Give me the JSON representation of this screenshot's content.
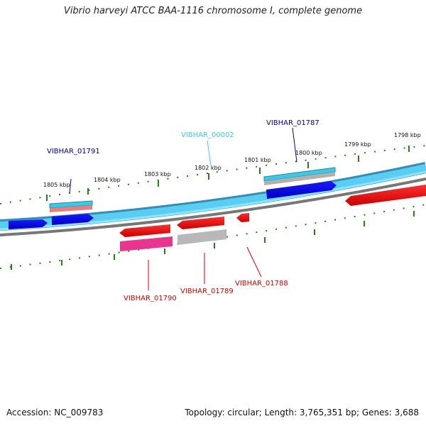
{
  "title": "Vibrio harveyi ATCC BAA-1116 chromosome I, complete genome",
  "footer": {
    "accession": "Accession: NC_009783",
    "stats": "Topology: circular; Length: 3,765,351 bp; Genes: 3,688"
  },
  "kbp_labels": [
    "1805 kbp",
    "1804 kbp",
    "1803 kbp",
    "1802 kbp",
    "1801 kbp",
    "1800 kbp",
    "1799 kbp",
    "1798 kbp"
  ],
  "gene_labels": [
    {
      "id": "VIBHAR_01791",
      "color": "#00008b"
    },
    {
      "id": "VIBHAR_00002",
      "color": "#3ec8e6"
    },
    {
      "id": "VIBHAR_01787",
      "color": "#00008b"
    },
    {
      "id": "VIBHAR_01790",
      "color": "#cc0000"
    },
    {
      "id": "VIBHAR_01789",
      "color": "#cc0000"
    },
    {
      "id": "VIBHAR_01788",
      "color": "#cc0000"
    }
  ],
  "colors": {
    "backbone": "#5bcdf3",
    "backbone_edge": "#2e8fb8",
    "inner_ring": "#777777",
    "tick": "#2a7a1a",
    "forward_gene": "#0000ee",
    "reverse_gene": "#ee0000",
    "cds_feature": "#3ec8e6",
    "rna_feature": "#e8368f",
    "grey_feature": "#b0b0b0",
    "pink_feature": "#e88080"
  }
}
